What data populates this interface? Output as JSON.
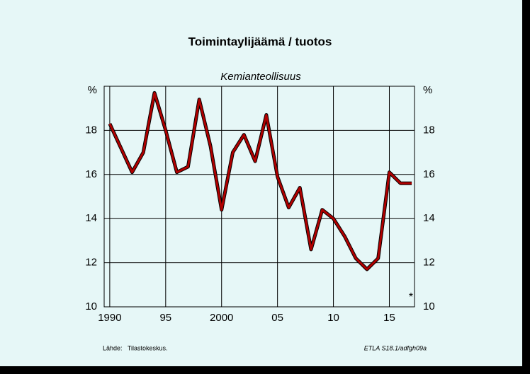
{
  "chart_data": {
    "type": "line",
    "title": "Toimintaylijäämä / tuotos",
    "subtitle": "Kemianteollisuus",
    "x": [
      1990,
      1991,
      1992,
      1993,
      1994,
      1995,
      1996,
      1997,
      1998,
      1999,
      2000,
      2001,
      2002,
      2003,
      2004,
      2005,
      2006,
      2007,
      2008,
      2009,
      2010,
      2011,
      2012,
      2013,
      2014,
      2015,
      2016,
      2017
    ],
    "series": [
      {
        "color": "#b00000",
        "values": [
          18.3,
          17.2,
          16.1,
          17.0,
          19.7,
          18.0,
          16.1,
          16.35,
          19.4,
          17.3,
          14.4,
          17.0,
          17.8,
          16.6,
          18.7,
          15.9,
          14.5,
          15.4,
          12.6,
          14.4,
          14.0,
          13.2,
          12.2,
          11.7,
          12.2,
          16.1,
          15.6,
          15.6
        ]
      }
    ],
    "xlim": [
      1989.5,
      2017.25
    ],
    "xticks": [
      {
        "value": 1990,
        "label": "1990"
      },
      {
        "value": 1995,
        "label": "95"
      },
      {
        "value": 2000,
        "label": "2000"
      },
      {
        "value": 2005,
        "label": "05"
      },
      {
        "value": 2010,
        "label": "10"
      },
      {
        "value": 2015,
        "label": "15"
      }
    ],
    "ylim": [
      10,
      20
    ],
    "yticks": [
      10,
      12,
      14,
      16,
      18,
      {
        "value": 20,
        "label": "%"
      }
    ],
    "y2lim": [
      10,
      20
    ],
    "y2ticks": [
      10,
      12,
      14,
      16,
      18,
      {
        "value": 20,
        "label": "%"
      }
    ],
    "grid": true,
    "annotation": "*",
    "source": "Lähde:   Tilastokeskus.",
    "code": "ETLA S18.1/adfgh09a"
  }
}
